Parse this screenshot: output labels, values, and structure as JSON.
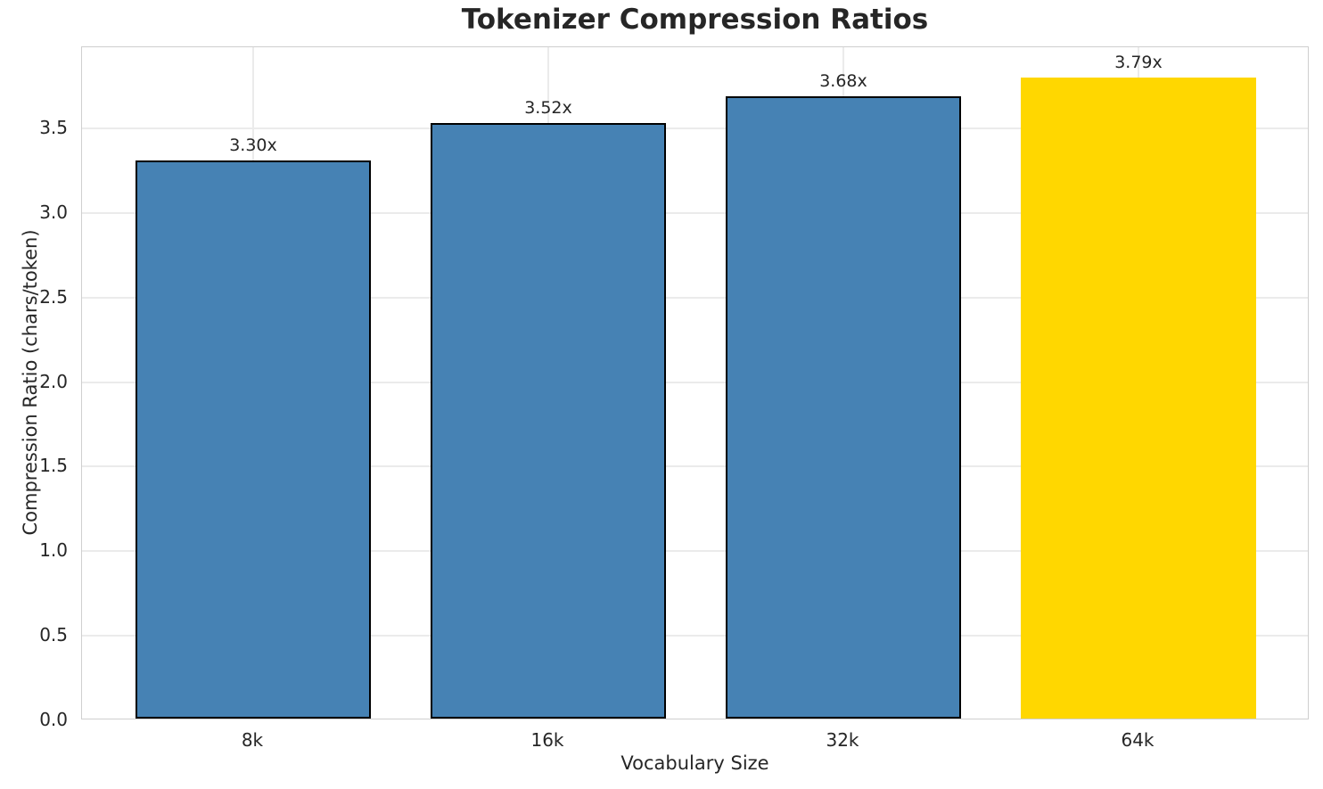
{
  "chart_data": {
    "type": "bar",
    "title": "Tokenizer Compression Ratios",
    "xlabel": "Vocabulary Size",
    "ylabel": "Compression Ratio (chars/token)",
    "categories": [
      "8k",
      "16k",
      "32k",
      "64k"
    ],
    "values": [
      3.3,
      3.52,
      3.68,
      3.79
    ],
    "value_labels": [
      "3.30x",
      "3.52x",
      "3.68x",
      "3.79x"
    ],
    "bar_colors": [
      "#4682B4",
      "#4682B4",
      "#4682B4",
      "#FFD700"
    ],
    "bar_edge_colors": [
      "#000000",
      "#000000",
      "#000000",
      "none"
    ],
    "bar_edge_width": 2.5,
    "bar_width": 0.8,
    "xlim": [
      -0.58,
      3.58
    ],
    "ylim": [
      0,
      3.98
    ],
    "yticks": [
      0.0,
      0.5,
      1.0,
      1.5,
      2.0,
      2.5,
      3.0,
      3.5
    ],
    "ytick_labels": [
      "0.0",
      "0.5",
      "1.0",
      "1.5",
      "2.0",
      "2.5",
      "3.0",
      "3.5"
    ],
    "grid": true,
    "legend": null,
    "grid_color": "#ebebeb",
    "spine_color": "#cfcfcf",
    "text_color": "#262626",
    "background_color": "#ffffff",
    "highlight_color": "#FFD700",
    "base_color": "#4682B4"
  }
}
